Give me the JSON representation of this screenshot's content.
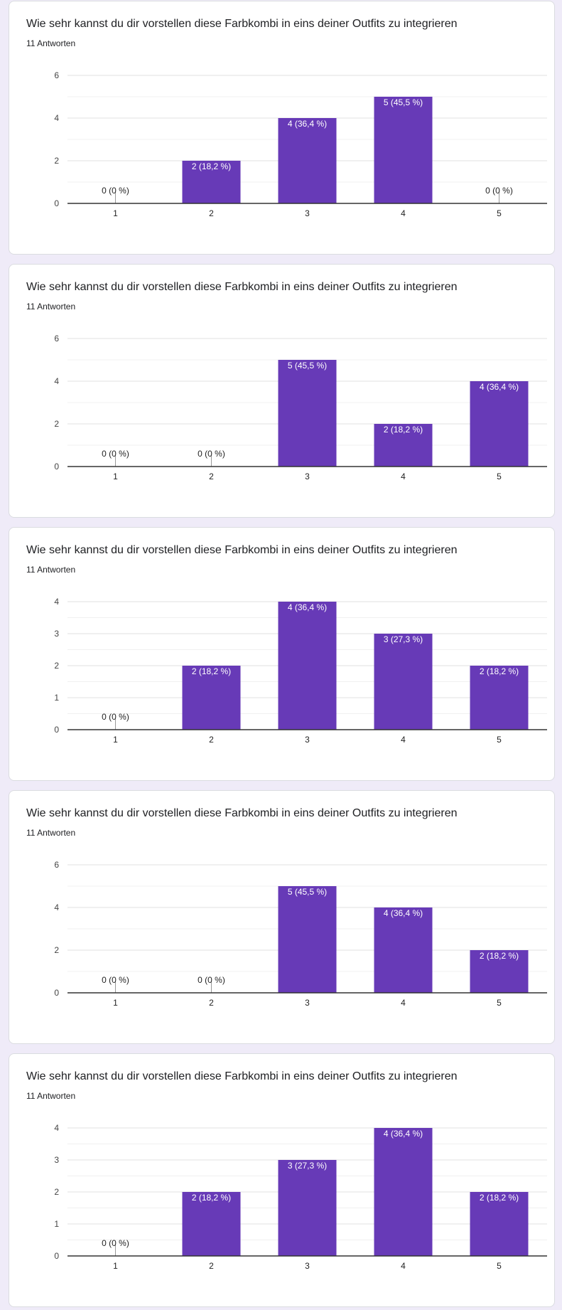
{
  "colors": {
    "bar": "#673ab7",
    "card_bg": "#ffffff",
    "page_bg": "#efebf8",
    "grid": "#e8e8e8",
    "axis": "#333333",
    "text": "#202124"
  },
  "questions": [
    {
      "title": "Wie sehr kannst du dir vorstellen diese Farbkombi in eins deiner Outfits zu integrieren",
      "count": "11 Antworten"
    },
    {
      "title": "Wie sehr kannst du dir vorstellen diese Farbkombi in eins deiner Outfits zu integrieren",
      "count": "11 Antworten"
    },
    {
      "title": "Wie sehr kannst du dir vorstellen diese Farbkombi in eins deiner Outfits zu integrieren",
      "count": "11 Antworten"
    },
    {
      "title": "Wie sehr kannst du dir vorstellen diese Farbkombi in eins deiner Outfits zu integrieren",
      "count": "11 Antworten"
    },
    {
      "title": "Wie sehr kannst du dir vorstellen diese Farbkombi in eins deiner Outfits zu integrieren",
      "count": "11 Antworten"
    }
  ],
  "chart_data": [
    {
      "type": "bar",
      "categories": [
        "1",
        "2",
        "3",
        "4",
        "5"
      ],
      "values": [
        0,
        2,
        4,
        5,
        0
      ],
      "labels": [
        "0 (0 %)",
        "2 (18,2 %)",
        "4 (36,4 %)",
        "5 (45,5 %)",
        "0 (0 %)"
      ],
      "ylim": [
        0,
        6
      ],
      "yticks": [
        0,
        2,
        4,
        6
      ],
      "grid": true
    },
    {
      "type": "bar",
      "categories": [
        "1",
        "2",
        "3",
        "4",
        "5"
      ],
      "values": [
        0,
        0,
        5,
        2,
        4
      ],
      "labels": [
        "0 (0 %)",
        "0 (0 %)",
        "5 (45,5 %)",
        "2 (18,2 %)",
        "4 (36,4 %)"
      ],
      "ylim": [
        0,
        6
      ],
      "yticks": [
        0,
        2,
        4,
        6
      ],
      "grid": true
    },
    {
      "type": "bar",
      "categories": [
        "1",
        "2",
        "3",
        "4",
        "5"
      ],
      "values": [
        0,
        2,
        4,
        3,
        2
      ],
      "labels": [
        "0 (0 %)",
        "2 (18,2 %)",
        "4 (36,4 %)",
        "3 (27,3 %)",
        "2 (18,2 %)"
      ],
      "ylim": [
        0,
        4
      ],
      "yticks": [
        0,
        1,
        2,
        3,
        4
      ],
      "grid": true
    },
    {
      "type": "bar",
      "categories": [
        "1",
        "2",
        "3",
        "4",
        "5"
      ],
      "values": [
        0,
        0,
        5,
        4,
        2
      ],
      "labels": [
        "0 (0 %)",
        "0 (0 %)",
        "5 (45,5 %)",
        "4 (36,4 %)",
        "2 (18,2 %)"
      ],
      "ylim": [
        0,
        6
      ],
      "yticks": [
        0,
        2,
        4,
        6
      ],
      "grid": true
    },
    {
      "type": "bar",
      "categories": [
        "1",
        "2",
        "3",
        "4",
        "5"
      ],
      "values": [
        0,
        2,
        3,
        4,
        2
      ],
      "labels": [
        "0 (0 %)",
        "2 (18,2 %)",
        "3 (27,3 %)",
        "4 (36,4 %)",
        "2 (18,2 %)"
      ],
      "ylim": [
        0,
        4
      ],
      "yticks": [
        0,
        1,
        2,
        3,
        4
      ],
      "grid": true
    }
  ]
}
